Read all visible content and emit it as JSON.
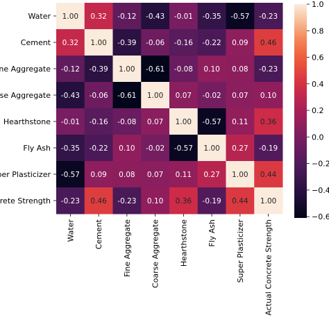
{
  "chart_data": {
    "type": "heatmap",
    "row_labels": [
      "Water",
      "Cement",
      "Fine Aggregate",
      "Coarse Aggregate",
      "Hearthstone",
      "Fly Ash",
      "Super Plasticizer",
      "Actual Concrete Strength"
    ],
    "col_labels": [
      "Water",
      "Cement",
      "Fine Aggregate",
      "Coarse Aggregate",
      "Hearthstone",
      "Fly Ash",
      "Super Plasticizer",
      "Actual Concrete Strength"
    ],
    "values": [
      [
        1.0,
        0.32,
        -0.12,
        -0.43,
        -0.01,
        -0.35,
        -0.57,
        -0.23
      ],
      [
        0.32,
        1.0,
        -0.39,
        -0.06,
        -0.16,
        -0.22,
        0.09,
        0.46
      ],
      [
        -0.12,
        -0.39,
        1.0,
        -0.61,
        -0.08,
        0.1,
        0.08,
        -0.23
      ],
      [
        -0.43,
        -0.06,
        -0.61,
        1.0,
        0.07,
        -0.02,
        0.07,
        0.1
      ],
      [
        -0.01,
        -0.16,
        -0.08,
        0.07,
        1.0,
        -0.57,
        0.11,
        0.36
      ],
      [
        -0.35,
        -0.22,
        0.1,
        -0.02,
        -0.57,
        1.0,
        0.27,
        -0.19
      ],
      [
        -0.57,
        0.09,
        0.08,
        0.07,
        0.11,
        0.27,
        1.0,
        0.44
      ],
      [
        -0.23,
        0.46,
        -0.23,
        0.1,
        0.36,
        -0.19,
        0.44,
        1.0
      ]
    ],
    "value_format": "0.00",
    "colorbar": {
      "range": [
        -0.61,
        1.0
      ],
      "ticks": [
        -0.6,
        -0.4,
        -0.2,
        0.0,
        0.2,
        0.4,
        0.6,
        0.8,
        1.0
      ],
      "tick_labels": [
        "−0.6",
        "−0.4",
        "−0.2",
        "0.0",
        "0.2",
        "0.4",
        "0.6",
        "0.8",
        "1.0"
      ],
      "colormap": "rocket"
    },
    "title": "",
    "xlabel": "",
    "ylabel": ""
  }
}
